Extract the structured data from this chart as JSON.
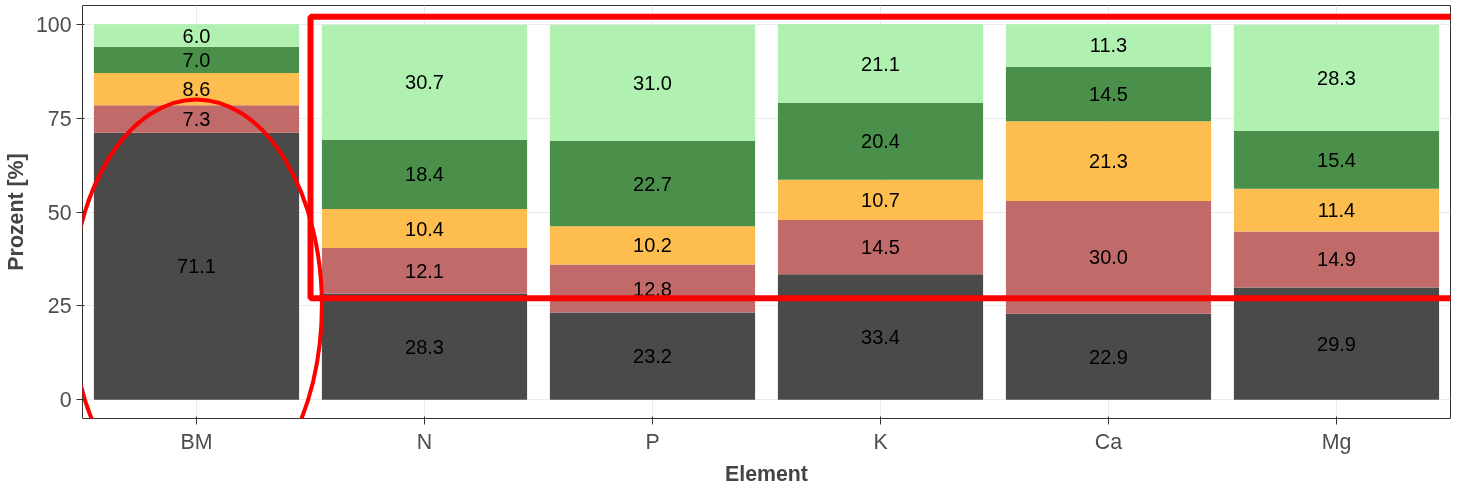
{
  "chart_data": {
    "type": "bar",
    "stacked": true,
    "xlabel": "Element",
    "ylabel": "Prozent [%]",
    "categories": [
      "BM",
      "N",
      "P",
      "K",
      "Ca",
      "Mg"
    ],
    "series": [
      {
        "color": "#4a4a4a",
        "values": [
          71.1,
          28.3,
          23.2,
          33.4,
          22.9,
          29.9
        ],
        "value_labels": [
          "71.1",
          "28.3",
          "23.2",
          "33.4",
          "22.9",
          "29.9"
        ]
      },
      {
        "color": "#c06a6a",
        "values": [
          7.3,
          12.1,
          12.8,
          14.5,
          30.0,
          14.9
        ],
        "value_labels": [
          "7.3",
          "12.1",
          "12.8",
          "14.5",
          "30.0",
          "14.9"
        ]
      },
      {
        "color": "#fdbd4f",
        "values": [
          8.6,
          10.4,
          10.2,
          10.7,
          21.3,
          11.4
        ],
        "value_labels": [
          "8.6",
          "10.4",
          "10.2",
          "10.7",
          "21.3",
          "11.4"
        ]
      },
      {
        "color": "#4a8f4a",
        "values": [
          7.0,
          18.4,
          22.7,
          20.4,
          14.5,
          15.4
        ],
        "value_labels": [
          "7.0",
          "18.4",
          "22.7",
          "20.4",
          "14.5",
          "15.4"
        ]
      },
      {
        "color": "#b0f0b0",
        "values": [
          6.0,
          30.7,
          31.0,
          21.1,
          11.3,
          28.3
        ],
        "value_labels": [
          "6.0",
          "30.7",
          "31.0",
          "21.1",
          "11.3",
          "28.3"
        ]
      }
    ],
    "ylim": [
      -5,
      105
    ],
    "yticks": [
      0,
      25,
      50,
      75,
      100
    ],
    "grid": true
  }
}
